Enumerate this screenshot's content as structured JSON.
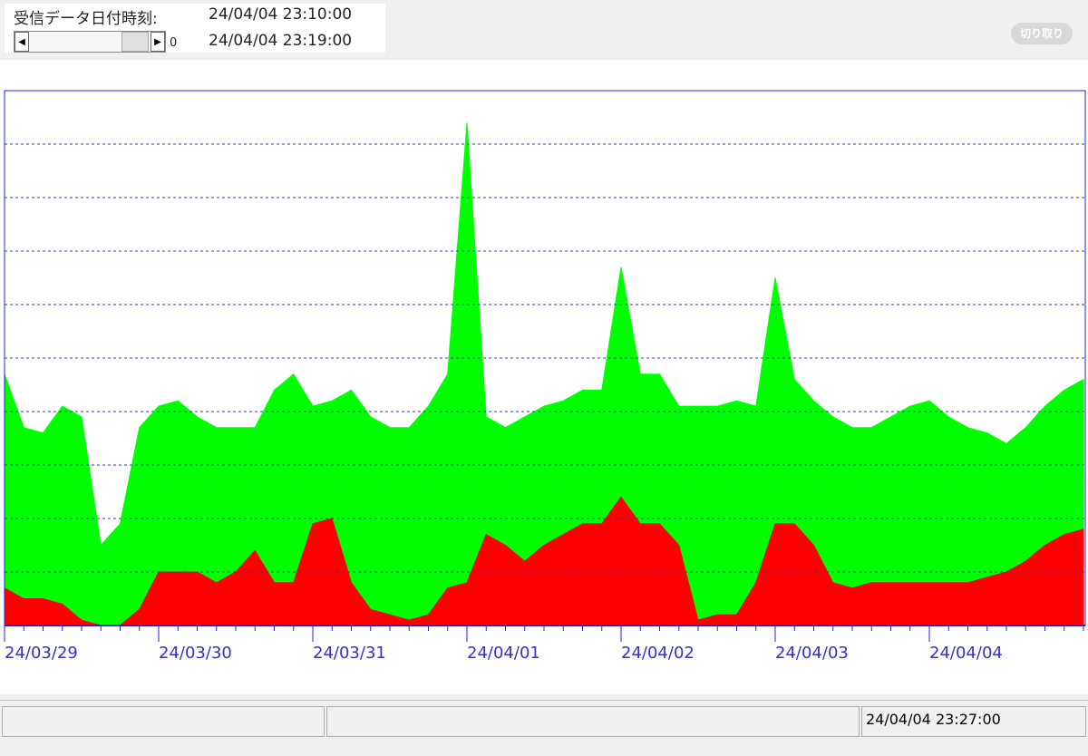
{
  "header": {
    "label": "受信データ日付時刻:",
    "time_from": "24/04/04 23:10:00",
    "time_to": "24/04/04 23:19:00",
    "scroll_value": "0",
    "button": "切り取り"
  },
  "status_bar": {
    "time": "24/04/04 23:27:00"
  },
  "chart_data": {
    "type": "area",
    "categories": [
      "24/03/29",
      null,
      null,
      null,
      null,
      null,
      null,
      null,
      "24/03/30",
      null,
      null,
      null,
      null,
      null,
      null,
      null,
      "24/03/31",
      null,
      null,
      null,
      null,
      null,
      null,
      null,
      "24/04/01",
      null,
      null,
      null,
      null,
      null,
      null,
      null,
      "24/04/02",
      null,
      null,
      null,
      null,
      null,
      null,
      null,
      "24/04/03",
      null,
      null,
      null,
      null,
      null,
      null,
      null,
      "24/04/04",
      null,
      null,
      null,
      null,
      null,
      null,
      null,
      null
    ],
    "series": [
      {
        "color": "#00ff00",
        "values": [
          47,
          37,
          36,
          41,
          39,
          15,
          19,
          37,
          41,
          42,
          39,
          37,
          37,
          37,
          44,
          47,
          41,
          42,
          44,
          39,
          37,
          37,
          41,
          47,
          94,
          39,
          37,
          39,
          41,
          42,
          44,
          44,
          67,
          47,
          47,
          41,
          41,
          41,
          42,
          41,
          65,
          46,
          42,
          39,
          37,
          37,
          39,
          41,
          42,
          39,
          37,
          36,
          34,
          37,
          41,
          44,
          46
        ]
      },
      {
        "color": "#ff0000",
        "values": [
          7,
          5,
          5,
          4,
          1,
          0,
          0,
          3,
          10,
          10,
          10,
          8,
          10,
          14,
          8,
          8,
          19,
          20,
          8,
          3,
          2,
          1,
          2,
          7,
          8,
          17,
          15,
          12,
          15,
          17,
          19,
          19,
          24,
          19,
          19,
          15,
          1,
          2,
          2,
          8,
          19,
          19,
          15,
          8,
          7,
          8,
          8,
          8,
          8,
          8,
          8,
          9,
          10,
          12,
          15,
          17,
          18
        ]
      }
    ],
    "ylim": [
      0,
      100
    ],
    "yticks": [
      10,
      20,
      30,
      40,
      50,
      60,
      70,
      80,
      90
    ],
    "grid": true
  }
}
